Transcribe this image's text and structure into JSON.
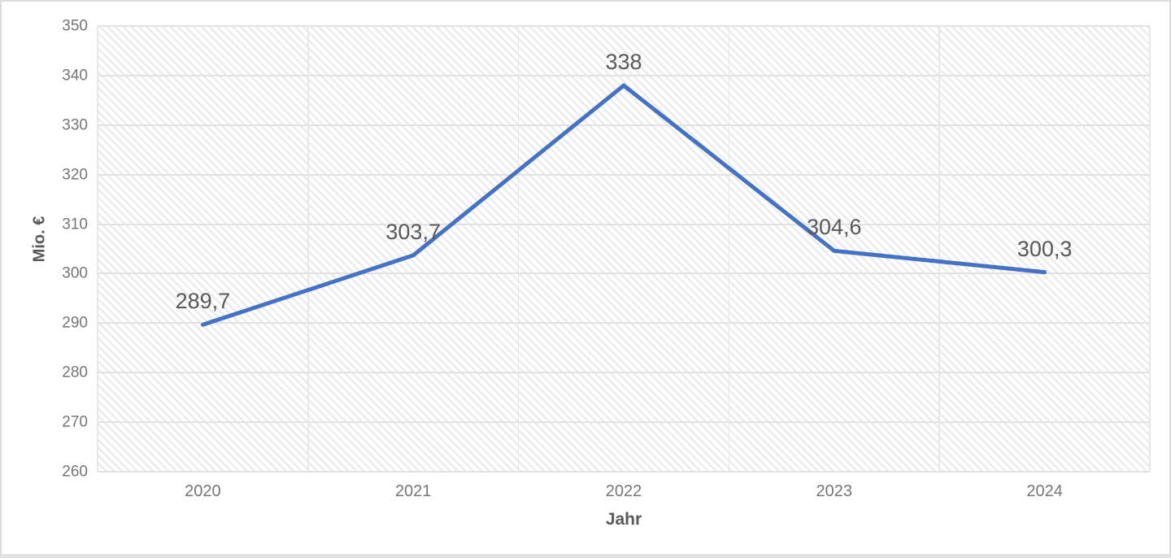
{
  "chart_data": {
    "type": "line",
    "title": "",
    "categories": [
      "2020",
      "2021",
      "2022",
      "2023",
      "2024"
    ],
    "series": [
      {
        "name": "Mio. €",
        "values": [
          289.7,
          303.7,
          338,
          304.6,
          300.3
        ],
        "labels": [
          "289,7",
          "303,7",
          "338",
          "304,6",
          "300,3"
        ]
      }
    ],
    "xlabel": "Jahr",
    "ylabel": "Mio. €",
    "ylim": [
      260,
      350
    ],
    "yticks": [
      350,
      340,
      330,
      320,
      310,
      300,
      290,
      280,
      270,
      260
    ],
    "grid": true,
    "legend": "none",
    "line_color": "#4472C4",
    "tick_color": "#767676",
    "label_color": "#595959",
    "plot_hatch": "diagonal-stripe"
  }
}
